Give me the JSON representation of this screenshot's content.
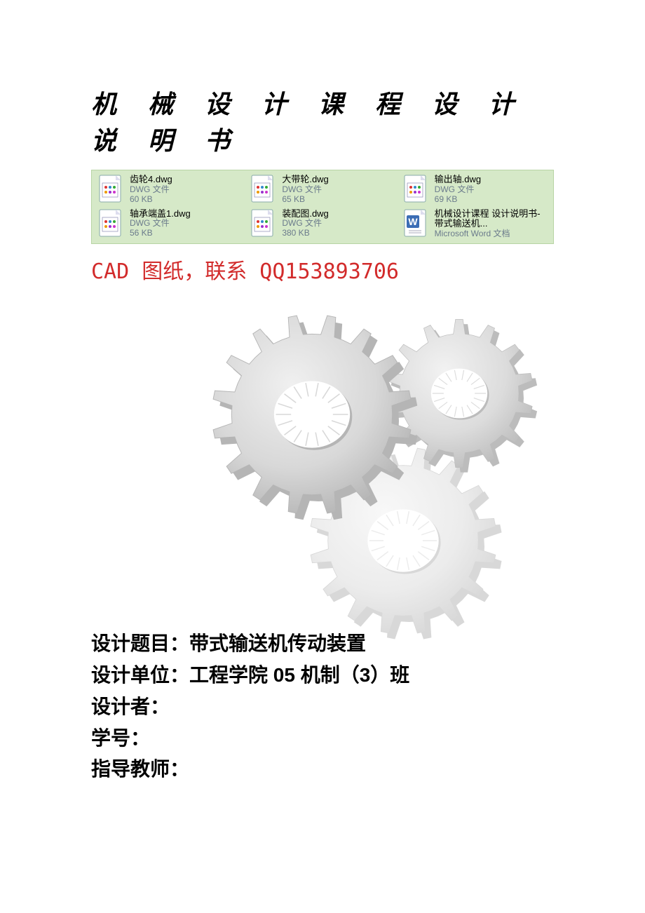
{
  "title": "机 械 设 计 课 程 设 计 说 明 书",
  "contact_line": "CAD 图纸，联系 QQ153893706",
  "file_panel": {
    "bg_color": "#d6e9c8",
    "border_color": "#b8d4a4",
    "items": [
      {
        "name": "齿轮4.dwg",
        "type": "DWG 文件",
        "size": "60 KB",
        "icon": "dwg"
      },
      {
        "name": "大带轮.dwg",
        "type": "DWG 文件",
        "size": "65 KB",
        "icon": "dwg"
      },
      {
        "name": "输出轴.dwg",
        "type": "DWG 文件",
        "size": "69 KB",
        "icon": "dwg"
      },
      {
        "name": "轴承端盖1.dwg",
        "type": "DWG 文件",
        "size": "56 KB",
        "icon": "dwg"
      },
      {
        "name": "装配图.dwg",
        "type": "DWG 文件",
        "size": "380 KB",
        "icon": "dwg"
      },
      {
        "name": "机械设计课程 设计说明书-带式输送机...",
        "type": "Microsoft Word 文档",
        "size": "",
        "icon": "word"
      }
    ]
  },
  "gears": {
    "gear1": {
      "fill": "#d8d8d8",
      "shadow": "#b5b5b5",
      "highlight": "#f0f0f0",
      "teeth": 16,
      "inner_ratio": 0.38
    },
    "gear2": {
      "fill": "#dcdcdc",
      "shadow": "#bcbcbc",
      "highlight": "#f2f2f2",
      "teeth": 14,
      "inner_ratio": 0.38
    },
    "gear3": {
      "fill": "#ececec",
      "shadow": "#d8d8d8",
      "highlight": "#f8f8f8",
      "teeth": 16,
      "inner_ratio": 0.38
    }
  },
  "info": {
    "rows": [
      {
        "label": "设计题目：",
        "value": "带式输送机传动装置"
      },
      {
        "label": "设计单位：",
        "value": "工程学院 05 机制（3）班"
      },
      {
        "label": "设计者：",
        "value": ""
      },
      {
        "label": "学号：",
        "value": ""
      },
      {
        "label": "指导教师：",
        "value": ""
      }
    ]
  },
  "colors": {
    "title_color": "#000000",
    "contact_color": "#d22b2b",
    "filetype_color": "#6b7b8c",
    "page_bg": "#ffffff"
  },
  "typography": {
    "title_fontsize": 36,
    "contact_fontsize": 30,
    "info_fontsize": 28,
    "filename_fontsize": 13,
    "filetype_fontsize": 12
  }
}
